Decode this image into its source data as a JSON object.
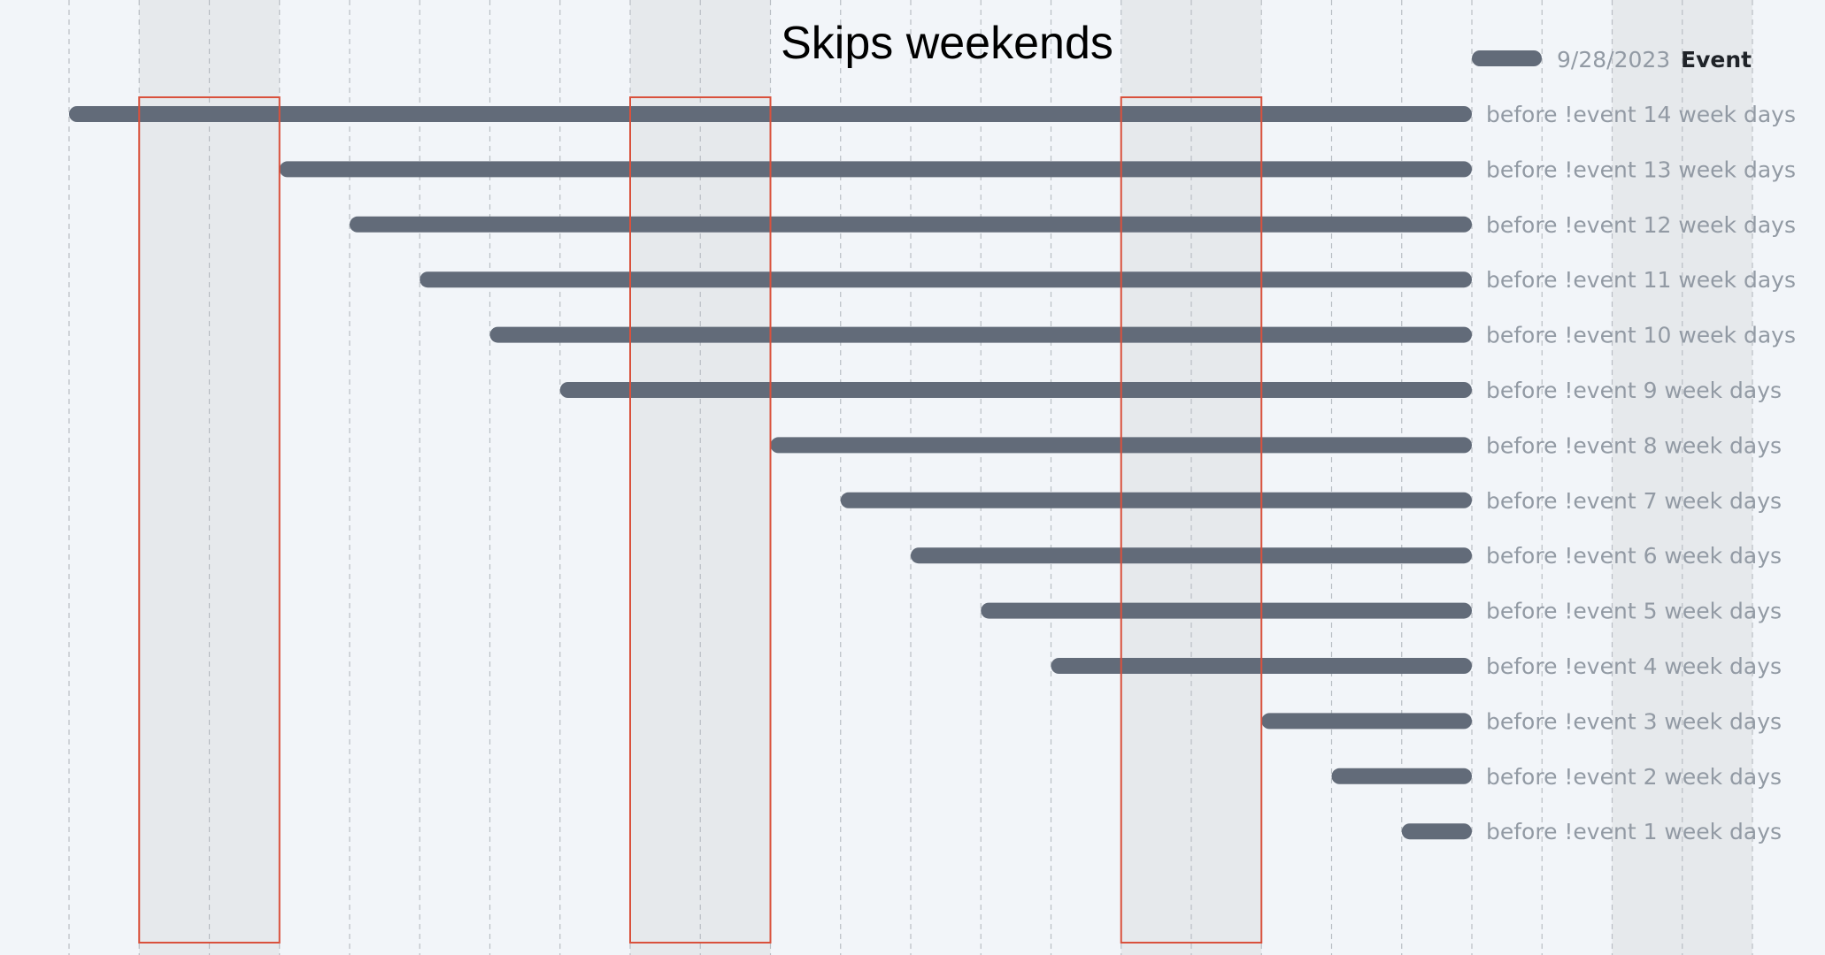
{
  "chart_data": {
    "type": "gantt",
    "title": "Skips weekends",
    "grid": true,
    "colors": {
      "background": "#f2f5f9",
      "bar": "#626b79",
      "weekend_band": "#e6e9ec",
      "highlight_outline": "#d9513c",
      "grid_line": "#b9bec4",
      "task_label": "#929aa4",
      "title": "#000000"
    },
    "milestone": {
      "name": "Event",
      "date": "9/28/2023",
      "x": "2023-09-28"
    },
    "x_range": [
      "2023-09-08",
      "2023-10-02"
    ],
    "weekend_ranges": [
      [
        "2023-09-09",
        "2023-09-11"
      ],
      [
        "2023-09-16",
        "2023-09-18"
      ],
      [
        "2023-09-23",
        "2023-09-25"
      ],
      [
        "2023-09-30",
        "2023-10-02"
      ]
    ],
    "highlighted_ranges": [
      [
        "2023-09-09",
        "2023-09-11"
      ],
      [
        "2023-09-16",
        "2023-09-18"
      ],
      [
        "2023-09-23",
        "2023-09-25"
      ]
    ],
    "tasks": [
      {
        "label": "before !event 14 week days",
        "start": "2023-09-08",
        "end": "2023-09-28"
      },
      {
        "label": "before !event 13 week days",
        "start": "2023-09-11",
        "end": "2023-09-28"
      },
      {
        "label": "before !event 12 week days",
        "start": "2023-09-12",
        "end": "2023-09-28"
      },
      {
        "label": "before !event 11 week days",
        "start": "2023-09-13",
        "end": "2023-09-28"
      },
      {
        "label": "before !event 10 week days",
        "start": "2023-09-14",
        "end": "2023-09-28"
      },
      {
        "label": "before !event 9 week days",
        "start": "2023-09-15",
        "end": "2023-09-28"
      },
      {
        "label": "before !event 8 week days",
        "start": "2023-09-18",
        "end": "2023-09-28"
      },
      {
        "label": "before !event 7 week days",
        "start": "2023-09-19",
        "end": "2023-09-28"
      },
      {
        "label": "before !event 6 week days",
        "start": "2023-09-20",
        "end": "2023-09-28"
      },
      {
        "label": "before !event 5 week days",
        "start": "2023-09-21",
        "end": "2023-09-28"
      },
      {
        "label": "before !event 4 week days",
        "start": "2023-09-22",
        "end": "2023-09-28"
      },
      {
        "label": "before !event 3 week days",
        "start": "2023-09-25",
        "end": "2023-09-28"
      },
      {
        "label": "before !event 2 week days",
        "start": "2023-09-26",
        "end": "2023-09-28"
      },
      {
        "label": "before !event 1 week days",
        "start": "2023-09-27",
        "end": "2023-09-28"
      }
    ]
  }
}
